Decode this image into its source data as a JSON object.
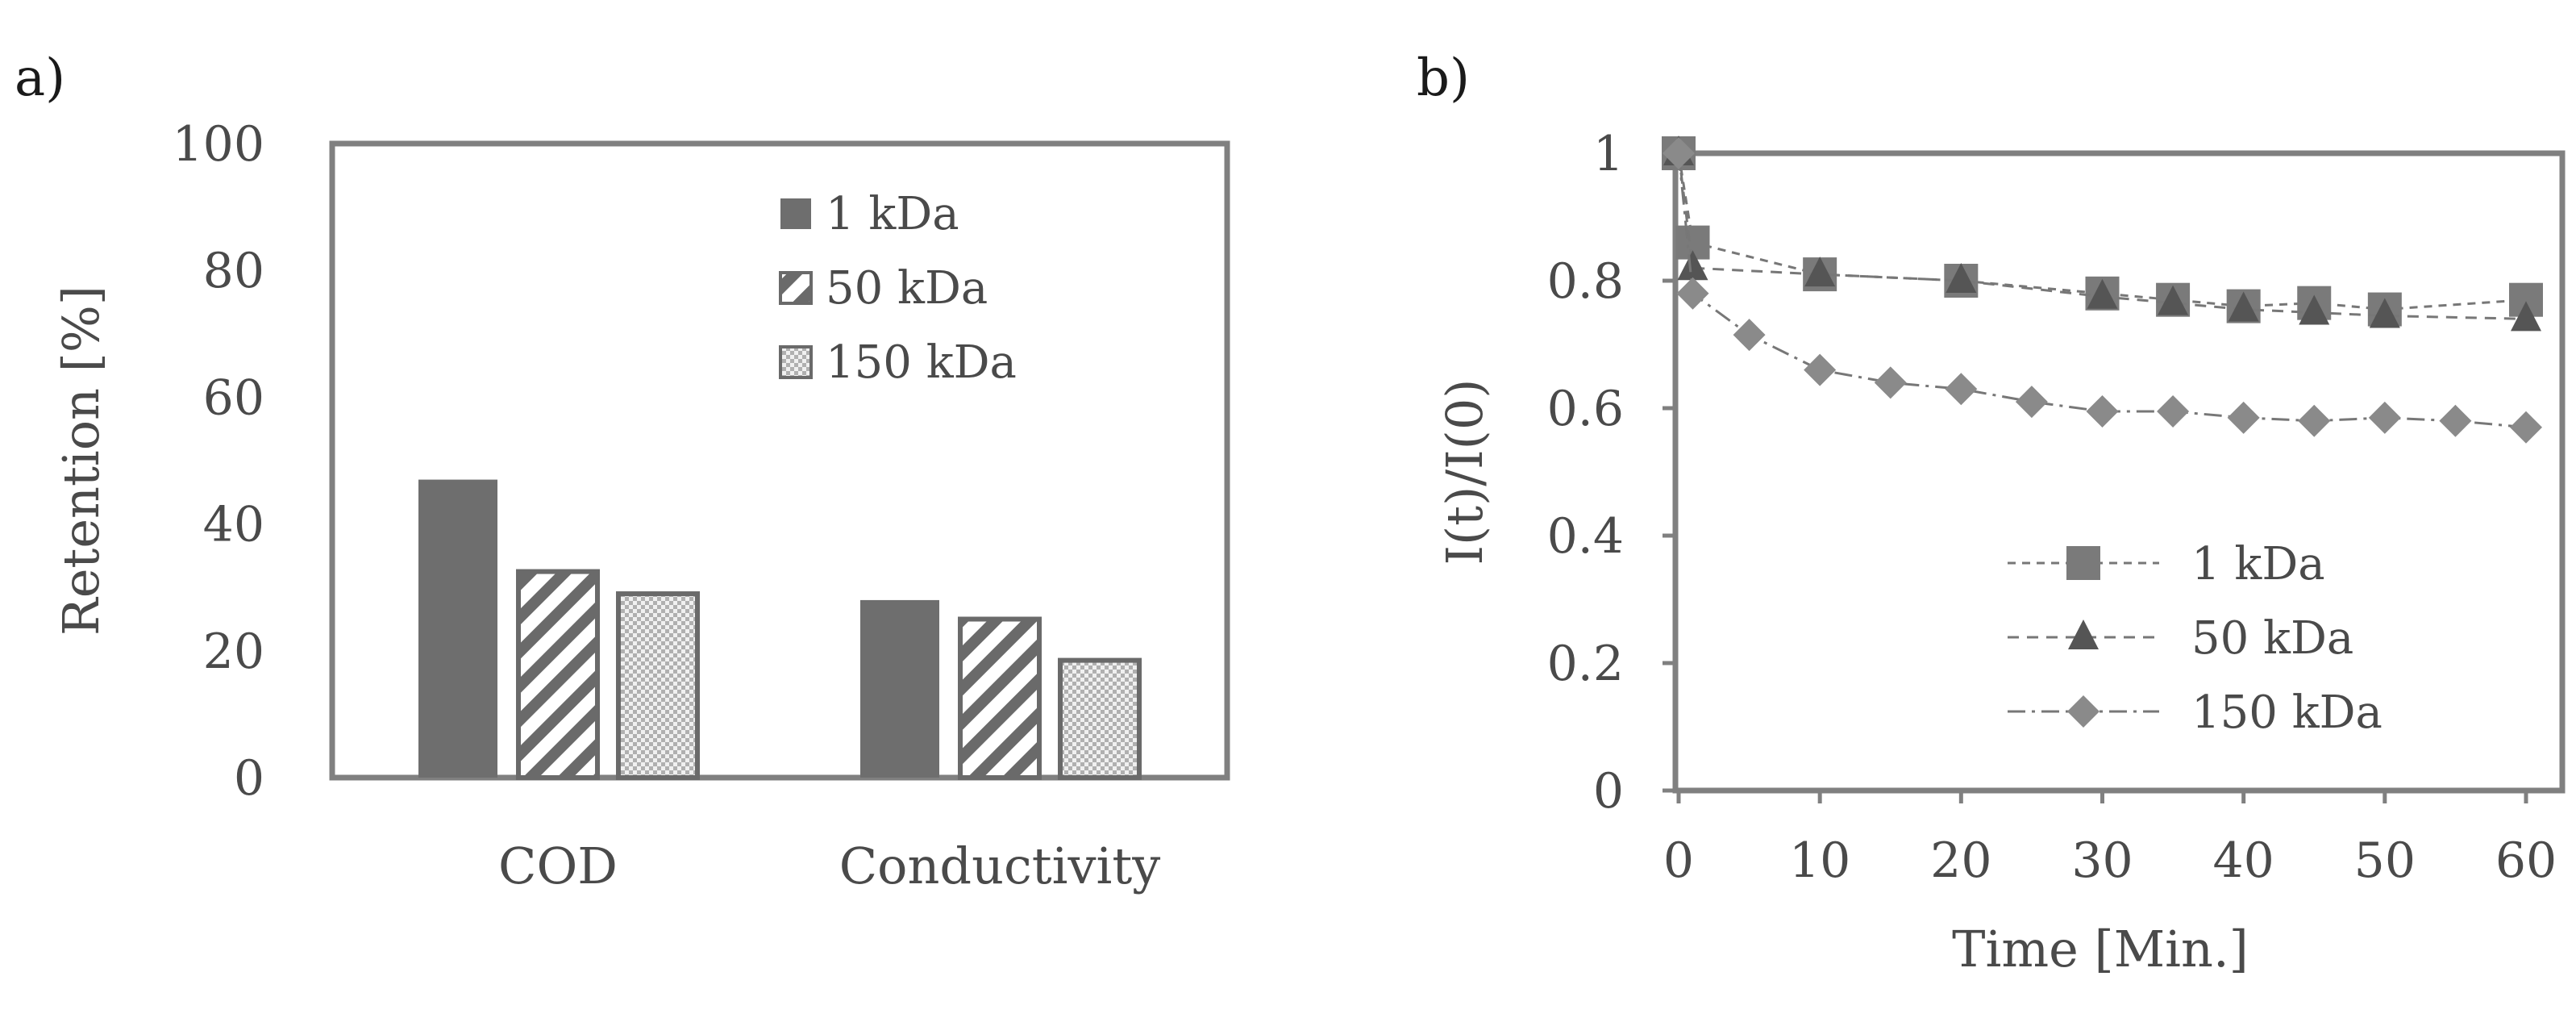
{
  "chart_data": [
    {
      "panel": "a)",
      "type": "bar",
      "ylabel": "Retention [%]",
      "ylim": [
        0,
        100
      ],
      "yticks": [
        0,
        20,
        40,
        60,
        80,
        100
      ],
      "categories": [
        "COD",
        "Conductivity"
      ],
      "series": [
        {
          "name": "1 kDa",
          "pattern": "solid",
          "values": [
            47,
            28
          ]
        },
        {
          "name": "50 kDa",
          "pattern": "diagonal",
          "values": [
            32.5,
            25
          ]
        },
        {
          "name": "150 kDa",
          "pattern": "dotted",
          "values": [
            29,
            18.5
          ]
        }
      ],
      "legend_position": "top-right",
      "grid": false
    },
    {
      "panel": "b)",
      "type": "line",
      "xlabel": "Time [Min.]",
      "ylabel": "I(t)/I(0)",
      "xlim": [
        0,
        60
      ],
      "ylim": [
        0,
        1
      ],
      "xticks": [
        0,
        10,
        20,
        30,
        40,
        50,
        60
      ],
      "yticks": [
        0,
        0.2,
        0.4,
        0.6,
        0.8,
        1
      ],
      "series": [
        {
          "name": "1 kDa",
          "marker": "square",
          "x": [
            0,
            1,
            10,
            20,
            30,
            35,
            40,
            45,
            50,
            60
          ],
          "y": [
            1.0,
            0.86,
            0.81,
            0.8,
            0.78,
            0.77,
            0.76,
            0.765,
            0.755,
            0.77
          ]
        },
        {
          "name": "50 kDa",
          "marker": "triangle",
          "x": [
            0,
            1,
            10,
            20,
            30,
            35,
            40,
            45,
            50,
            60
          ],
          "y": [
            1.0,
            0.82,
            0.81,
            0.8,
            0.775,
            0.765,
            0.755,
            0.75,
            0.745,
            0.74
          ]
        },
        {
          "name": "150 kDa",
          "marker": "diamond",
          "x": [
            0,
            1,
            5,
            10,
            15,
            20,
            25,
            30,
            35,
            40,
            45,
            50,
            55,
            60
          ],
          "y": [
            1.0,
            0.78,
            0.715,
            0.66,
            0.64,
            0.63,
            0.61,
            0.595,
            0.595,
            0.585,
            0.58,
            0.585,
            0.58,
            0.57
          ]
        }
      ],
      "legend_position": "bottom-right",
      "grid": false
    }
  ]
}
